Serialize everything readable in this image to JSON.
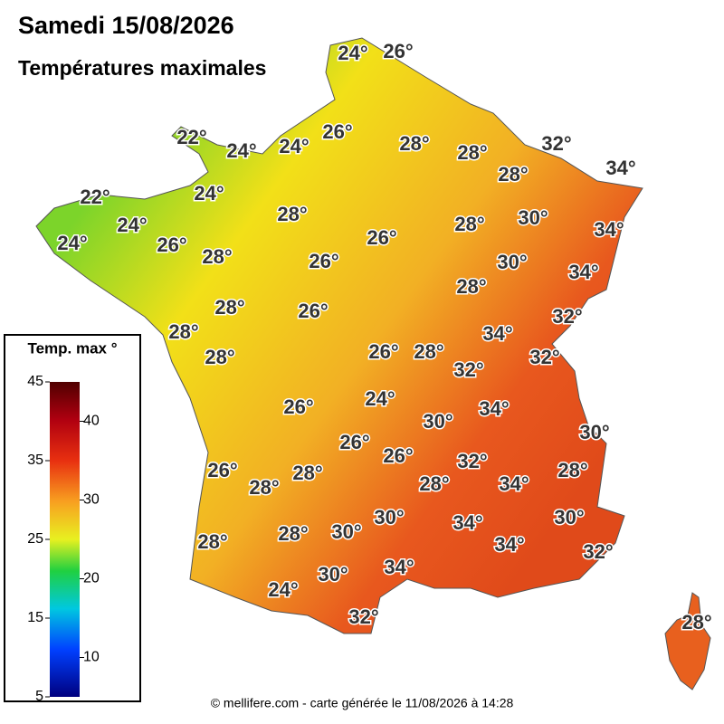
{
  "header": {
    "title": "Samedi 15/08/2026",
    "subtitle": "Températures maximales"
  },
  "legend": {
    "title": "Temp. max °",
    "range": [
      5,
      45
    ],
    "ticks_left": [
      45,
      35,
      25,
      15,
      5
    ],
    "ticks_right": [
      40,
      30,
      20,
      10
    ]
  },
  "map": {
    "labels": [
      "24°",
      "26°",
      "22°",
      "24°",
      "24°",
      "26°",
      "28°",
      "28°",
      "32°",
      "34°",
      "28°",
      "22°",
      "24°",
      "24°",
      "24°",
      "26°",
      "28°",
      "26°",
      "28°",
      "30°",
      "34°",
      "28°",
      "26°",
      "30°",
      "34°",
      "28°",
      "28°",
      "26°",
      "32°",
      "28°",
      "34°",
      "26°",
      "28°",
      "28°",
      "32°",
      "32°",
      "24°",
      "26°",
      "34°",
      "30°",
      "30°",
      "26°",
      "26°",
      "32°",
      "26°",
      "28°",
      "28°",
      "34°",
      "28°",
      "28°",
      "30°",
      "34°",
      "30°",
      "28°",
      "28°",
      "30°",
      "34°",
      "32°",
      "34°",
      "30°",
      "24°",
      "32°",
      "28°"
    ]
  },
  "footer": "© mellifere.com - carte générée le 11/08/2026 à 14:28"
}
